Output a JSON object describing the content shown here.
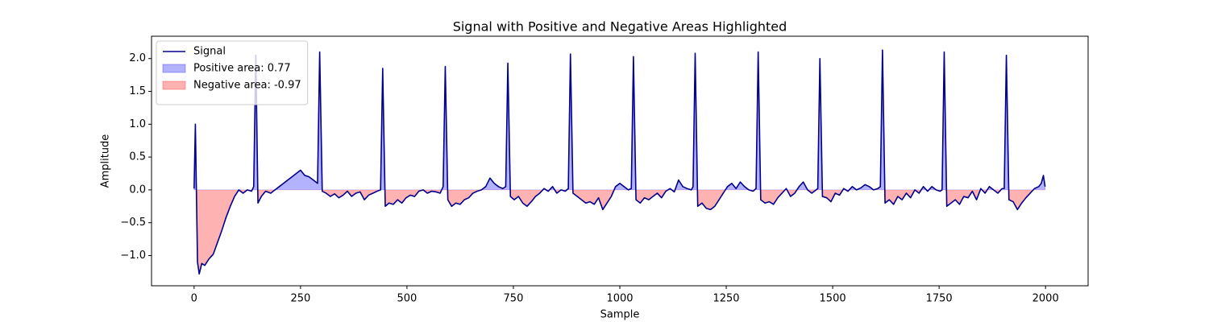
{
  "chart_data": {
    "type": "line",
    "title": "Signal with Positive and Negative Areas Highlighted",
    "xlabel": "Sample",
    "ylabel": "Amplitude",
    "x": [
      0,
      3,
      8,
      12,
      18,
      25,
      35,
      45,
      55,
      65,
      75,
      85,
      95,
      105,
      115,
      125,
      135,
      140,
      145,
      150,
      158,
      168,
      180,
      190,
      200,
      210,
      220,
      230,
      240,
      250,
      260,
      270,
      280,
      290,
      295,
      301,
      310,
      320,
      330,
      340,
      350,
      360,
      370,
      380,
      390,
      400,
      410,
      420,
      430,
      438,
      443,
      449,
      458,
      468,
      478,
      488,
      498,
      508,
      518,
      528,
      538,
      548,
      558,
      568,
      578,
      585,
      590,
      596,
      605,
      615,
      625,
      635,
      645,
      655,
      665,
      675,
      685,
      695,
      705,
      715,
      725,
      732,
      737,
      743,
      752,
      762,
      772,
      782,
      792,
      802,
      812,
      822,
      832,
      842,
      852,
      862,
      872,
      879,
      884,
      890,
      900,
      910,
      920,
      930,
      940,
      950,
      960,
      970,
      980,
      990,
      1000,
      1010,
      1020,
      1027,
      1032,
      1038,
      1048,
      1058,
      1068,
      1078,
      1088,
      1098,
      1108,
      1118,
      1128,
      1138,
      1148,
      1158,
      1168,
      1172,
      1177,
      1183,
      1193,
      1203,
      1213,
      1223,
      1233,
      1243,
      1253,
      1263,
      1273,
      1283,
      1293,
      1303,
      1313,
      1320,
      1325,
      1331,
      1341,
      1351,
      1361,
      1371,
      1381,
      1391,
      1401,
      1411,
      1421,
      1431,
      1441,
      1451,
      1461,
      1465,
      1470,
      1476,
      1486,
      1496,
      1506,
      1516,
      1526,
      1536,
      1546,
      1556,
      1566,
      1576,
      1586,
      1596,
      1606,
      1612,
      1617,
      1623,
      1633,
      1643,
      1653,
      1663,
      1673,
      1683,
      1693,
      1703,
      1713,
      1723,
      1733,
      1743,
      1752,
      1757,
      1762,
      1768,
      1778,
      1788,
      1798,
      1808,
      1818,
      1828,
      1838,
      1848,
      1858,
      1868,
      1878,
      1888,
      1898,
      1903,
      1908,
      1914,
      1924,
      1934,
      1944,
      1954,
      1964,
      1974,
      1984,
      1990,
      1995,
      1999
    ],
    "series": [
      {
        "name": "Signal",
        "color": "#00008b",
        "values": [
          0.02,
          1.0,
          -1.1,
          -1.28,
          -1.12,
          -1.15,
          -1.05,
          -0.98,
          -0.8,
          -0.62,
          -0.42,
          -0.25,
          -0.1,
          0.0,
          -0.05,
          0.0,
          -0.02,
          0.05,
          2.05,
          -0.2,
          -0.1,
          -0.02,
          -0.05,
          0.0,
          0.05,
          0.1,
          0.15,
          0.2,
          0.25,
          0.3,
          0.22,
          0.2,
          0.15,
          0.1,
          2.1,
          -0.02,
          -0.05,
          -0.1,
          -0.06,
          -0.12,
          -0.08,
          -0.02,
          -0.1,
          -0.05,
          -0.03,
          -0.15,
          -0.08,
          -0.05,
          -0.02,
          0.0,
          1.85,
          -0.25,
          -0.2,
          -0.22,
          -0.15,
          -0.2,
          -0.12,
          -0.08,
          -0.1,
          -0.02,
          0.0,
          -0.05,
          -0.02,
          -0.03,
          -0.05,
          0.05,
          1.88,
          -0.15,
          -0.25,
          -0.2,
          -0.22,
          -0.15,
          -0.12,
          -0.05,
          -0.02,
          0.0,
          0.05,
          0.18,
          0.1,
          0.05,
          0.02,
          0.05,
          1.93,
          -0.1,
          -0.15,
          -0.1,
          -0.2,
          -0.25,
          -0.18,
          -0.1,
          -0.05,
          0.02,
          -0.02,
          0.05,
          -0.05,
          0.0,
          -0.02,
          0.02,
          2.07,
          -0.05,
          -0.1,
          -0.15,
          -0.2,
          -0.18,
          -0.22,
          -0.12,
          -0.3,
          -0.2,
          -0.1,
          0.05,
          0.1,
          0.05,
          0.0,
          0.02,
          2.03,
          -0.15,
          -0.2,
          -0.12,
          -0.15,
          -0.1,
          -0.05,
          -0.12,
          -0.02,
          0.02,
          -0.03,
          0.15,
          0.05,
          0.02,
          0.0,
          0.05,
          2.08,
          -0.25,
          -0.2,
          -0.28,
          -0.3,
          -0.25,
          -0.15,
          -0.05,
          0.05,
          0.1,
          0.02,
          0.12,
          0.05,
          0.0,
          -0.02,
          0.02,
          2.1,
          -0.15,
          -0.2,
          -0.18,
          -0.22,
          -0.12,
          -0.05,
          0.02,
          -0.1,
          -0.05,
          0.05,
          0.12,
          0.0,
          -0.05,
          0.0,
          0.02,
          2.0,
          -0.1,
          -0.12,
          -0.18,
          -0.05,
          -0.08,
          0.02,
          -0.02,
          0.05,
          0.0,
          0.03,
          0.08,
          0.05,
          0.0,
          0.02,
          0.05,
          2.13,
          -0.2,
          -0.15,
          -0.22,
          -0.1,
          -0.15,
          -0.05,
          -0.12,
          0.0,
          -0.05,
          0.05,
          -0.02,
          0.05,
          0.0,
          -0.02,
          0.0,
          2.1,
          -0.25,
          -0.2,
          -0.15,
          -0.22,
          -0.1,
          -0.12,
          -0.02,
          -0.15,
          0.02,
          -0.05,
          0.05,
          0.0,
          -0.05,
          0.02,
          0.02,
          2.05,
          -0.15,
          -0.18,
          -0.3,
          -0.2,
          -0.12,
          -0.05,
          0.02,
          0.05,
          0.1,
          0.22,
          0.05
        ]
      }
    ],
    "areas": [
      {
        "name": "Positive area: 0.77",
        "color": "#0000ff",
        "side": "above"
      },
      {
        "name": "Negative area: -0.97",
        "color": "#ff0000",
        "side": "below"
      }
    ],
    "xlim": [
      -100,
      2100
    ],
    "xticks": [
      0,
      250,
      500,
      750,
      1000,
      1250,
      1500,
      1750,
      2000
    ],
    "ylim": [
      -1.46,
      2.34
    ],
    "yticks": [
      {
        "value": -1.0,
        "label": "−1.0"
      },
      {
        "value": -0.5,
        "label": "−0.5"
      },
      {
        "value": 0.0,
        "label": "0.0"
      },
      0.5,
      {
        "value": 1.0,
        "label": "1.0"
      },
      1.5,
      {
        "value": 2.0,
        "label": "2.0"
      }
    ],
    "legend": "upper left"
  }
}
